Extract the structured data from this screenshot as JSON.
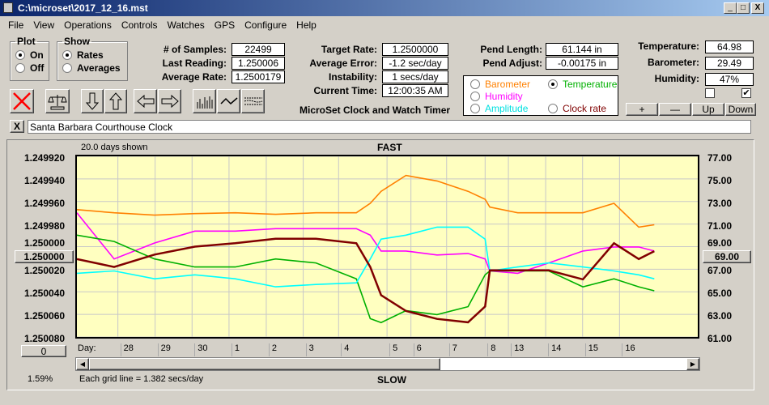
{
  "window": {
    "title": "C:\\microset\\2017_12_16.mst",
    "minimize": "_",
    "maximize": "□",
    "close": "X"
  },
  "menu": [
    "File",
    "View",
    "Operations",
    "Controls",
    "Watches",
    "GPS",
    "Configure",
    "Help"
  ],
  "plot_group": {
    "label": "Plot",
    "on": "On",
    "off": "Off",
    "selected": "On"
  },
  "show_group": {
    "label": "Show",
    "rates": "Rates",
    "averages": "Averages",
    "selected": "Rates"
  },
  "stats": [
    {
      "label": "# of Samples:",
      "value": "22499"
    },
    {
      "label": "Last Reading:",
      "value": "1.250006"
    },
    {
      "label": "Average Rate:",
      "value": "1.2500179"
    },
    {
      "label": "Target Rate:",
      "value": "1.2500000"
    },
    {
      "label": "Average Error:",
      "value": "-1.2 sec/day"
    },
    {
      "label": "Instability:",
      "value": "1 secs/day"
    },
    {
      "label": "Current Time:",
      "value": "12:00:35 AM"
    },
    {
      "label": "Pend Length:",
      "value": "61.144 in"
    },
    {
      "label": "Pend Adjust:",
      "value": "-0.00175 in"
    },
    {
      "label": "Temperature:",
      "value": "64.98"
    },
    {
      "label": "Barometer:",
      "value": "29.49"
    },
    {
      "label": "Humidity:",
      "value": "47%"
    }
  ],
  "app_name": "MicroSet Clock and Watch Timer",
  "series_select": {
    "barometer": "Barometer",
    "temperature": "Temperature",
    "humidity": "Humidity",
    "amplitude": "Amplitude",
    "clock_rate": "Clock rate",
    "selected": "Temperature"
  },
  "checkboxes": [
    false,
    true
  ],
  "scale_buttons": {
    "plus": "+",
    "minus": "—",
    "up": "Up",
    "down": "Down"
  },
  "clock_name": {
    "clear": "X",
    "value": "Santa Barbara Courthouse Clock"
  },
  "plot": {
    "days_shown": "20.0 days shown",
    "fast": "FAST",
    "slow": "SLOW",
    "day_label": "Day:",
    "grid_note": "Each grid line = 1.382 secs/day",
    "percent": "1.59%",
    "center_left": "1.250000",
    "center_right": "69.00",
    "zero_btn": "0",
    "scroll_position": 0.59
  },
  "colors": {
    "barometer": "#ff8000",
    "temperature": "#00b000",
    "humidity": "#ff00ff",
    "amplitude": "#00ffff",
    "clock_rate": "#800000",
    "plot_bg": "#ffffc0"
  },
  "chart_data": {
    "type": "line",
    "x_range_days": [
      0,
      20
    ],
    "left_axis": {
      "ticks": [
        "1.249920",
        "1.249940",
        "1.249960",
        "1.249980",
        "1.250000",
        "1.250020",
        "1.250040",
        "1.250060",
        "1.250080"
      ],
      "range": [
        1.24992,
        1.25008
      ],
      "inverted": true
    },
    "right_axis": {
      "ticks": [
        "77.00",
        "75.00",
        "73.00",
        "71.00",
        "69.00",
        "67.00",
        "65.00",
        "63.00",
        "61.00"
      ],
      "range": [
        61,
        77
      ]
    },
    "day_ticks": [
      {
        "label": "28",
        "x": 1.32
      },
      {
        "label": "29",
        "x": 2.52
      },
      {
        "label": "30",
        "x": 3.71
      },
      {
        "label": "1",
        "x": 4.9
      },
      {
        "label": "2",
        "x": 6.1
      },
      {
        "label": "3",
        "x": 7.29
      },
      {
        "label": "4",
        "x": 8.43
      },
      {
        "label": "5",
        "x": 9.99
      },
      {
        "label": "6",
        "x": 10.76
      },
      {
        "label": "7",
        "x": 11.91
      },
      {
        "label": "8",
        "x": 13.15
      },
      {
        "label": "13",
        "x": 13.9
      },
      {
        "label": "14",
        "x": 15.1
      },
      {
        "label": "15",
        "x": 16.29
      },
      {
        "label": "16",
        "x": 17.48
      }
    ],
    "x": [
      0,
      1.2,
      2.5,
      3.8,
      5.1,
      6.4,
      7.7,
      9.0,
      9.45,
      9.8,
      10.6,
      11.6,
      12.6,
      13.15,
      13.3,
      14.2,
      15.2,
      16.3,
      17.3,
      18.1,
      18.6
    ],
    "series": [
      {
        "name": "Barometer",
        "axis": "right",
        "color": "#ff8000",
        "values": [
          72.28,
          72.0,
          71.79,
          71.93,
          72.0,
          71.86,
          72.0,
          72.0,
          72.84,
          73.9,
          75.31,
          74.82,
          73.9,
          73.2,
          72.5,
          72.0,
          72.0,
          72.0,
          72.84,
          70.73,
          70.94
        ]
      },
      {
        "name": "Humidity",
        "axis": "right",
        "color": "#ff00ff",
        "values": [
          72.0,
          67.91,
          69.32,
          70.38,
          70.38,
          70.59,
          70.59,
          70.59,
          70.02,
          68.61,
          68.61,
          68.26,
          68.4,
          67.91,
          66.85,
          66.64,
          67.56,
          68.61,
          68.97,
          68.97,
          68.61
        ]
      },
      {
        "name": "Temperature",
        "axis": "right",
        "color": "#00b000",
        "values": [
          70.02,
          69.46,
          67.91,
          67.2,
          67.2,
          67.91,
          67.56,
          66.15,
          62.62,
          62.28,
          63.33,
          62.98,
          63.68,
          66.5,
          66.85,
          66.85,
          66.85,
          65.44,
          66.15,
          65.44,
          65.09
        ]
      },
      {
        "name": "Amplitude",
        "axis": "right",
        "color": "#00ffff",
        "values": [
          66.64,
          66.85,
          66.15,
          66.5,
          66.15,
          65.44,
          65.65,
          65.79,
          67.91,
          69.67,
          70.02,
          70.73,
          70.73,
          69.67,
          66.85,
          67.2,
          67.56,
          67.2,
          66.85,
          66.5,
          66.15
        ]
      },
      {
        "name": "Clock rate",
        "axis": "left",
        "color": "#800000",
        "values": [
          1.250011,
          1.250018,
          1.250007,
          1.25,
          1.249997,
          1.249993,
          1.249993,
          1.249997,
          1.250018,
          1.250043,
          1.250057,
          1.250064,
          1.250067,
          1.250053,
          1.250021,
          1.250021,
          1.250021,
          1.250029,
          1.249997,
          1.250011,
          1.250004
        ]
      }
    ]
  }
}
